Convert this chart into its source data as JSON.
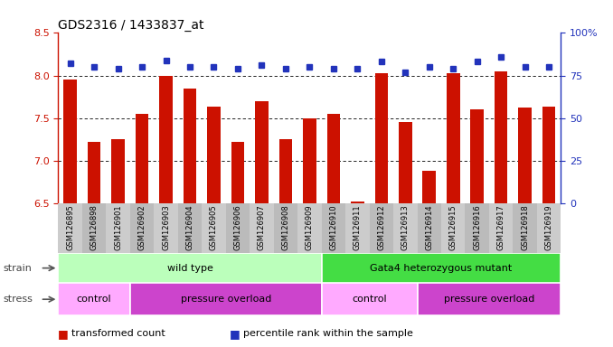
{
  "title": "GDS2316 / 1433837_at",
  "samples": [
    "GSM126895",
    "GSM126898",
    "GSM126901",
    "GSM126902",
    "GSM126903",
    "GSM126904",
    "GSM126905",
    "GSM126906",
    "GSM126907",
    "GSM126908",
    "GSM126909",
    "GSM126910",
    "GSM126911",
    "GSM126912",
    "GSM126913",
    "GSM126914",
    "GSM126915",
    "GSM126916",
    "GSM126917",
    "GSM126918",
    "GSM126919"
  ],
  "bar_values": [
    7.95,
    7.22,
    7.25,
    7.55,
    8.0,
    7.85,
    7.63,
    7.22,
    7.7,
    7.25,
    7.5,
    7.55,
    6.52,
    8.03,
    7.45,
    6.88,
    8.03,
    7.6,
    8.05,
    7.62,
    7.63
  ],
  "dot_values": [
    82,
    80,
    79,
    80,
    84,
    80,
    80,
    79,
    81,
    79,
    80,
    79,
    79,
    83,
    77,
    80,
    79,
    83,
    86,
    80,
    80
  ],
  "ylim_left": [
    6.5,
    8.5
  ],
  "ylim_right": [
    0,
    100
  ],
  "yticks_left": [
    6.5,
    7.0,
    7.5,
    8.0,
    8.5
  ],
  "yticks_right": [
    0,
    25,
    50,
    75,
    100
  ],
  "ytick_labels_right": [
    "0",
    "25",
    "50",
    "75",
    "100%"
  ],
  "bar_color": "#cc1100",
  "dot_color": "#2233bb",
  "bar_width": 0.55,
  "grid_yticks": [
    7.0,
    7.5,
    8.0
  ],
  "strain_groups": [
    {
      "label": "wild type",
      "start": 0,
      "end": 11,
      "color": "#bbffbb"
    },
    {
      "label": "Gata4 heterozygous mutant",
      "start": 11,
      "end": 21,
      "color": "#44dd44"
    }
  ],
  "stress_groups": [
    {
      "label": "control",
      "start": 0,
      "end": 3,
      "color": "#ffaaff"
    },
    {
      "label": "pressure overload",
      "start": 3,
      "end": 11,
      "color": "#cc44cc"
    },
    {
      "label": "control",
      "start": 11,
      "end": 15,
      "color": "#ffaaff"
    },
    {
      "label": "pressure overload",
      "start": 15,
      "end": 21,
      "color": "#cc44cc"
    }
  ],
  "legend_red_label": "transformed count",
  "legend_blue_label": "percentile rank within the sample",
  "strain_label": "strain",
  "stress_label": "stress",
  "tick_bg_even": "#cccccc",
  "tick_bg_odd": "#bbbbbb",
  "left_axis_color": "#cc1100",
  "right_axis_color": "#2233bb"
}
